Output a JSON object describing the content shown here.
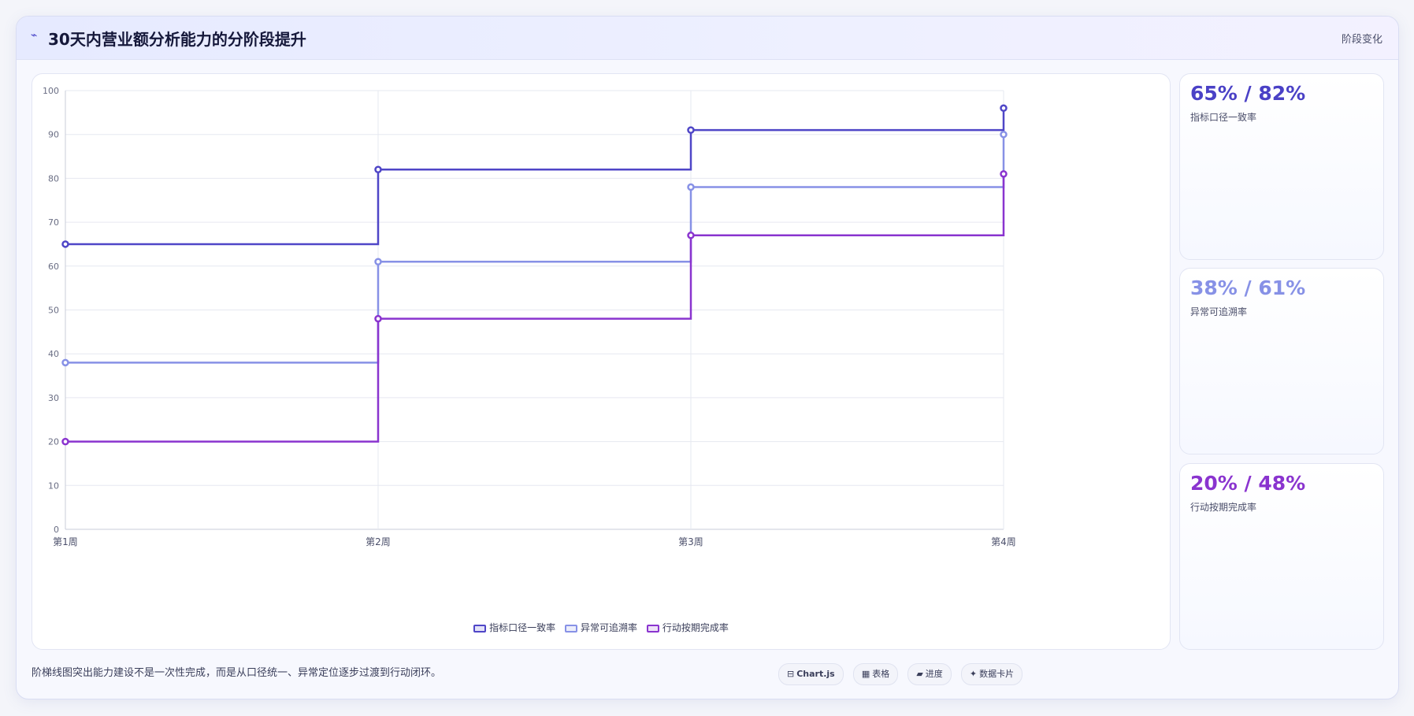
{
  "header": {
    "icon": "trend-line-icon",
    "title": "30天内营业额分析能力的分阶段提升",
    "tag": "阶段变化"
  },
  "chart_data": {
    "type": "line",
    "step": true,
    "categories": [
      "第1周",
      "第2周",
      "第3周",
      "第4周"
    ],
    "series": [
      {
        "name": "指标口径一致率",
        "values": [
          65,
          82,
          91,
          96
        ],
        "color": "#4f46c7"
      },
      {
        "name": "异常可追溯率",
        "values": [
          38,
          61,
          78,
          90
        ],
        "color": "#8791e6"
      },
      {
        "name": "行动按期完成率",
        "values": [
          20,
          48,
          67,
          81
        ],
        "color": "#8a34cf"
      }
    ],
    "ylim": [
      0,
      100
    ],
    "yticks": [
      0,
      10,
      20,
      30,
      40,
      50,
      60,
      70,
      80,
      90,
      100
    ],
    "grid": true,
    "legend": "bottom-center"
  },
  "cards": [
    {
      "value": "65% / 82%",
      "label": "指标口径一致率",
      "color": "#4a41c6"
    },
    {
      "value": "38% / 61%",
      "label": "异常可追溯率",
      "color": "#8791e6"
    },
    {
      "value": "20% / 48%",
      "label": "行动按期完成率",
      "color": "#8a34cf"
    }
  ],
  "footer": {
    "note": "阶梯线图突出能力建设不是一次性完成，而是从口径统一、异常定位逐步过渡到行动闭环。",
    "tags": [
      {
        "icon": "⊟",
        "label": "Chart.js"
      },
      {
        "icon": "▦",
        "label": "表格"
      },
      {
        "icon": "▰",
        "label": "进度"
      },
      {
        "icon": "✦",
        "label": "数据卡片"
      }
    ]
  }
}
